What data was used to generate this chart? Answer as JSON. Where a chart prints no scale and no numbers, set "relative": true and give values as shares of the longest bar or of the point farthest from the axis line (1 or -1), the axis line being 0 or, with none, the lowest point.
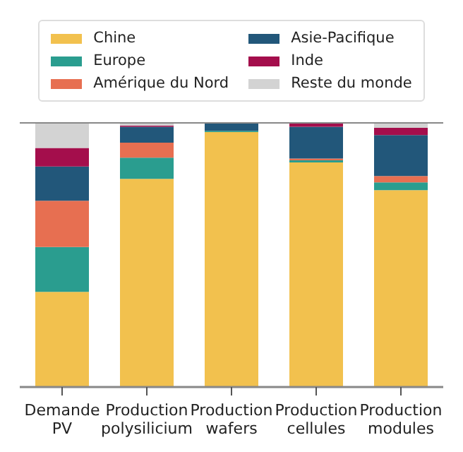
{
  "chart_data": {
    "type": "bar",
    "relative": true,
    "stacked": true,
    "legend": "top",
    "categories": [
      "Demande PV",
      "Production polysilicium",
      "Production wafers",
      "Production cellules",
      "Production modules"
    ],
    "series": [
      {
        "name": "Chine",
        "color": "#f2c14e",
        "values": [
          0.36,
          0.788,
          0.965,
          0.85,
          0.745
        ]
      },
      {
        "name": "Europe",
        "color": "#2a9d8f",
        "values": [
          0.17,
          0.08,
          0.005,
          0.008,
          0.03
        ]
      },
      {
        "name": "Amérique du Nord",
        "color": "#e76f51",
        "values": [
          0.175,
          0.057,
          0,
          0.007,
          0.024
        ]
      },
      {
        "name": "Asie-Pacifique",
        "color": "#22577a",
        "values": [
          0.13,
          0.06,
          0.03,
          0.12,
          0.155
        ]
      },
      {
        "name": "Inde",
        "color": "#a40e4c",
        "values": [
          0.07,
          0.005,
          0,
          0.012,
          0.027
        ]
      },
      {
        "name": "Reste du monde",
        "color": "#d3d3d3",
        "values": [
          0.095,
          0.01,
          0,
          0,
          0.019
        ]
      }
    ]
  }
}
